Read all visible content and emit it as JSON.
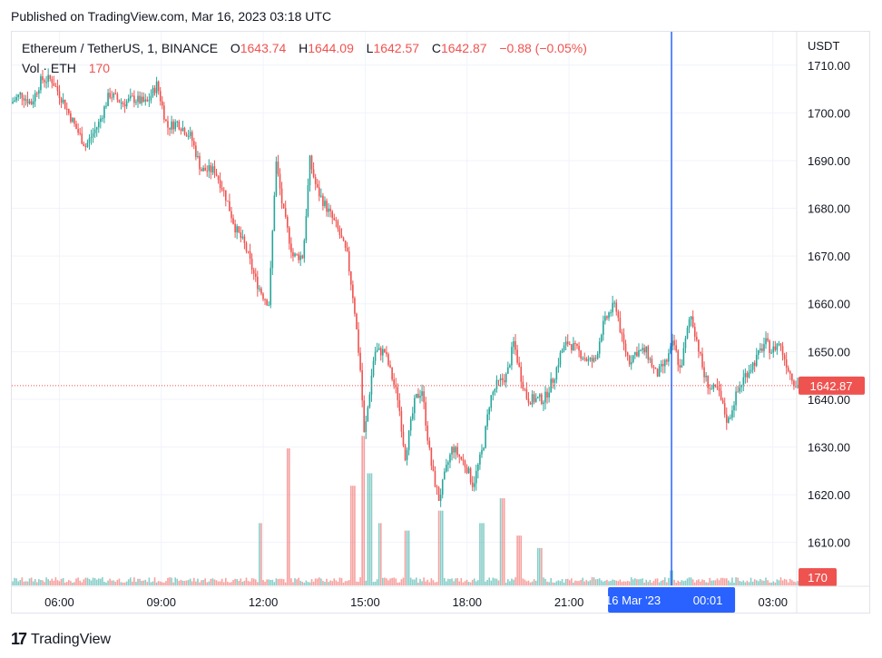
{
  "published": "Published on TradingView.com, Mar 16, 2023 03:18 UTC",
  "legend": {
    "symbol": "Ethereum / TetherUS, 1, BINANCE",
    "o_label": "O",
    "o_value": "1643.74",
    "h_label": "H",
    "h_value": "1644.09",
    "l_label": "L",
    "l_value": "1642.57",
    "c_label": "C",
    "c_value": "1642.87",
    "change": "−0.88 (−0.05%)",
    "vol_label": "Vol · ETH",
    "vol_value": "170"
  },
  "footer": {
    "brand": "TradingView",
    "brand_mark": "17"
  },
  "colors": {
    "up": "#26a69a",
    "down": "#ef5350",
    "crosshair": "#2962ff",
    "grid": "#f0f3fa"
  },
  "chart_data": {
    "type": "candlestick",
    "y_axis_label": "USDT",
    "yticks": [
      1610,
      1620,
      1630,
      1640,
      1650,
      1660,
      1670,
      1680,
      1690,
      1700,
      1710
    ],
    "ytick_labels": [
      "1610.00",
      "1620.00",
      "1630.00",
      "1640.00",
      "1650.00",
      "1660.00",
      "1670.00",
      "1680.00",
      "1690.00",
      "1700.00",
      "1710.00"
    ],
    "ylim": [
      1601,
      1717
    ],
    "xlim_hours": [
      4.6,
      27.7
    ],
    "xticks": [
      {
        "h": 6,
        "label": "06:00"
      },
      {
        "h": 9,
        "label": "09:00"
      },
      {
        "h": 12,
        "label": "12:00"
      },
      {
        "h": 15,
        "label": "15:00"
      },
      {
        "h": 18,
        "label": "18:00"
      },
      {
        "h": 21,
        "label": "21:00"
      },
      {
        "h": 27,
        "label": "03:00"
      }
    ],
    "crosshair": {
      "h": 24.0167,
      "label_date": "16 Mar '23",
      "label_time": "00:01"
    },
    "last_price": {
      "value": 1642.87,
      "label": "1642.87"
    },
    "last_volume": {
      "label": "170"
    },
    "price_path": [
      [
        4.6,
        1702
      ],
      [
        4.9,
        1704
      ],
      [
        5.2,
        1702
      ],
      [
        5.5,
        1707
      ],
      [
        5.8,
        1707
      ],
      [
        6.1,
        1703
      ],
      [
        6.5,
        1697
      ],
      [
        6.8,
        1693
      ],
      [
        7.2,
        1698
      ],
      [
        7.5,
        1704
      ],
      [
        7.9,
        1702
      ],
      [
        8.2,
        1703
      ],
      [
        8.6,
        1702
      ],
      [
        8.9,
        1706
      ],
      [
        9.2,
        1697
      ],
      [
        9.5,
        1698
      ],
      [
        9.9,
        1695
      ],
      [
        10.2,
        1688
      ],
      [
        10.6,
        1688
      ],
      [
        10.9,
        1683
      ],
      [
        11.2,
        1676
      ],
      [
        11.5,
        1672
      ],
      [
        11.8,
        1665
      ],
      [
        12.0,
        1662
      ],
      [
        12.2,
        1660
      ],
      [
        12.4,
        1690
      ],
      [
        12.6,
        1680
      ],
      [
        12.9,
        1670
      ],
      [
        13.2,
        1670
      ],
      [
        13.4,
        1690
      ],
      [
        13.6,
        1684
      ],
      [
        13.9,
        1680
      ],
      [
        14.2,
        1676
      ],
      [
        14.5,
        1670
      ],
      [
        14.7,
        1660
      ],
      [
        14.9,
        1645
      ],
      [
        15.0,
        1632
      ],
      [
        15.3,
        1650
      ],
      [
        15.6,
        1650
      ],
      [
        15.8,
        1645
      ],
      [
        16.0,
        1640
      ],
      [
        16.2,
        1628
      ],
      [
        16.5,
        1640
      ],
      [
        16.7,
        1642
      ],
      [
        16.9,
        1630
      ],
      [
        17.0,
        1625
      ],
      [
        17.2,
        1619
      ],
      [
        17.4,
        1625
      ],
      [
        17.6,
        1630
      ],
      [
        17.8,
        1628
      ],
      [
        18.0,
        1626
      ],
      [
        18.2,
        1622
      ],
      [
        18.5,
        1630
      ],
      [
        18.7,
        1640
      ],
      [
        18.9,
        1643
      ],
      [
        19.2,
        1645
      ],
      [
        19.4,
        1652
      ],
      [
        19.6,
        1645
      ],
      [
        19.8,
        1640
      ],
      [
        20.0,
        1640
      ],
      [
        20.3,
        1640
      ],
      [
        20.6,
        1645
      ],
      [
        20.8,
        1650
      ],
      [
        21.0,
        1652
      ],
      [
        21.3,
        1650
      ],
      [
        21.6,
        1648
      ],
      [
        21.8,
        1648
      ],
      [
        22.0,
        1655
      ],
      [
        22.2,
        1658
      ],
      [
        22.4,
        1660
      ],
      [
        22.6,
        1652
      ],
      [
        22.8,
        1648
      ],
      [
        23.0,
        1650
      ],
      [
        23.3,
        1650
      ],
      [
        23.6,
        1645
      ],
      [
        23.9,
        1648
      ],
      [
        24.1,
        1652
      ],
      [
        24.3,
        1646
      ],
      [
        24.6,
        1658
      ],
      [
        24.8,
        1652
      ],
      [
        25.0,
        1645
      ],
      [
        25.2,
        1642
      ],
      [
        25.4,
        1642
      ],
      [
        25.7,
        1635
      ],
      [
        25.9,
        1640
      ],
      [
        26.2,
        1645
      ],
      [
        26.5,
        1648
      ],
      [
        26.8,
        1652
      ],
      [
        27.0,
        1650
      ],
      [
        27.2,
        1652
      ],
      [
        27.5,
        1646
      ],
      [
        27.7,
        1643
      ]
    ],
    "volume_spikes": [
      [
        11.9,
        0.25
      ],
      [
        12.7,
        0.55
      ],
      [
        14.6,
        0.4
      ],
      [
        14.9,
        0.6
      ],
      [
        15.1,
        0.45
      ],
      [
        15.4,
        0.25
      ],
      [
        16.2,
        0.22
      ],
      [
        17.2,
        0.3
      ],
      [
        18.4,
        0.25
      ],
      [
        19.0,
        0.35
      ],
      [
        19.5,
        0.2
      ],
      [
        20.1,
        0.15
      ],
      [
        24.0,
        0.06
      ]
    ]
  }
}
